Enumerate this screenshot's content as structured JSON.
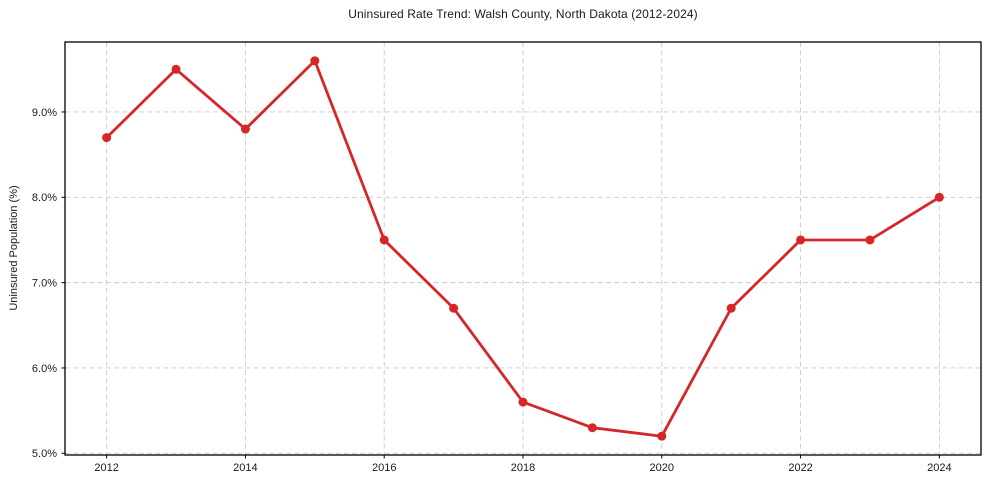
{
  "chart_data": {
    "type": "line",
    "title": "Uninsured Rate Trend: Walsh County, North Dakota (2012-2024)",
    "xlabel": "",
    "ylabel": "Uninsured Population (%)",
    "x": [
      2012,
      2013,
      2014,
      2015,
      2016,
      2017,
      2018,
      2019,
      2020,
      2021,
      2022,
      2023,
      2024
    ],
    "values": [
      8.7,
      9.5,
      8.8,
      9.6,
      7.5,
      6.7,
      5.6,
      5.3,
      5.2,
      6.7,
      7.5,
      7.5,
      8.0
    ],
    "series_name": "Uninsured rate",
    "xticks": [
      2012,
      2014,
      2016,
      2018,
      2020,
      2022,
      2024
    ],
    "xtick_labels": [
      "2012",
      "2014",
      "2016",
      "2018",
      "2020",
      "2022",
      "2024"
    ],
    "yticks": [
      5.0,
      6.0,
      7.0,
      8.0,
      9.0
    ],
    "ytick_labels": [
      "5.0%",
      "6.0%",
      "7.0%",
      "8.0%",
      "9.0%"
    ],
    "xlim": [
      2011.4,
      2024.6
    ],
    "ylim": [
      4.98,
      9.82
    ],
    "grid": "dashed",
    "legend": "none",
    "colors": {
      "line": "#d62728",
      "marker": "#d62728",
      "grid": "#c9c9c9",
      "axis": "#000000",
      "text": "#1a1a1a",
      "background": "#ffffff"
    }
  }
}
